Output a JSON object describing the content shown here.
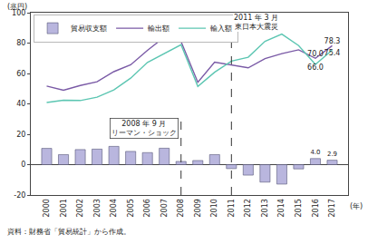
{
  "chart_data": {
    "type": "bar",
    "y_label": "(兆円)",
    "x_label": "(年)",
    "source": "資料：財務省「貿易統計」から作成。",
    "categories": [
      "2000",
      "2001",
      "2002",
      "2003",
      "2004",
      "2005",
      "2006",
      "2007",
      "2008",
      "2009",
      "2010",
      "2011",
      "2012",
      "2013",
      "2014",
      "2015",
      "2016",
      "2017"
    ],
    "series": [
      {
        "name": "貿易収支額",
        "type": "bar",
        "color": "#b9b6de",
        "values": [
          10.7,
          6.6,
          9.9,
          10.2,
          12.0,
          8.7,
          7.9,
          10.8,
          2.1,
          2.7,
          6.6,
          -2.6,
          -6.9,
          -11.5,
          -12.8,
          -2.8,
          4.0,
          2.9
        ],
        "value_labels": [
          null,
          null,
          null,
          null,
          null,
          null,
          null,
          null,
          null,
          null,
          null,
          null,
          null,
          null,
          null,
          null,
          "4.0",
          "2.9"
        ]
      },
      {
        "name": "輸出額",
        "type": "line",
        "color": "#7a5aa6",
        "values": [
          51.7,
          49.0,
          52.1,
          54.5,
          61.2,
          65.7,
          75.2,
          83.9,
          81.0,
          54.2,
          67.4,
          65.5,
          63.7,
          69.8,
          73.1,
          75.6,
          70.0,
          78.3
        ],
        "value_labels": [
          null,
          null,
          null,
          null,
          null,
          null,
          null,
          null,
          null,
          null,
          null,
          null,
          null,
          null,
          null,
          null,
          "70.0",
          "78.3"
        ]
      },
      {
        "name": "輸入額",
        "type": "line",
        "color": "#5cc6b2",
        "values": [
          40.9,
          42.4,
          42.2,
          44.4,
          49.2,
          56.9,
          67.3,
          73.1,
          78.9,
          51.5,
          60.8,
          68.1,
          70.7,
          81.2,
          85.9,
          78.4,
          66.0,
          75.4
        ],
        "value_labels": [
          null,
          null,
          null,
          null,
          null,
          null,
          null,
          null,
          null,
          null,
          null,
          null,
          null,
          null,
          null,
          null,
          "66.0",
          "75.4"
        ]
      }
    ],
    "ylim": [
      -20,
      100
    ],
    "yticks": [
      -20,
      0,
      20,
      40,
      60,
      80,
      100
    ],
    "grid": false,
    "legend": "upper left",
    "annotations": [
      {
        "category": "2008",
        "text": [
          "2008 年 9 月",
          "リーマン・ショック"
        ]
      },
      {
        "category": "2011",
        "text": [
          "2011 年 3 月",
          "東日本大震災"
        ]
      }
    ]
  }
}
